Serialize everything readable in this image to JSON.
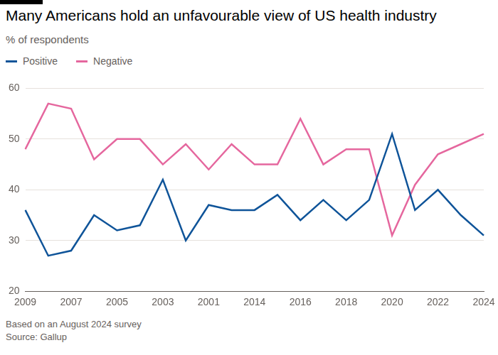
{
  "chart_data": {
    "type": "line",
    "title": "Many Americans hold an unfavourable view of US health industry",
    "subtitle": "% of respondents",
    "notes": [
      "Based on an August 2024 survey",
      "Source: Gallup"
    ],
    "categories": [
      "2009",
      null,
      "2007",
      null,
      "2005",
      null,
      "2003",
      null,
      "2001",
      null,
      "2014",
      null,
      "2016",
      null,
      "2018",
      null,
      "2020",
      null,
      "2022",
      null,
      "2024"
    ],
    "series": [
      {
        "name": "Positive",
        "color": "#0f5499",
        "values": [
          36,
          27,
          28,
          35,
          32,
          33,
          42,
          30,
          37,
          36,
          36,
          39,
          34,
          38,
          34,
          38,
          51,
          36,
          40,
          35,
          31
        ]
      },
      {
        "name": "Negative",
        "color": "#e5679e",
        "values": [
          48,
          57,
          56,
          46,
          50,
          50,
          45,
          49,
          44,
          49,
          45,
          45,
          54,
          45,
          48,
          48,
          31,
          41,
          47,
          49,
          51
        ]
      }
    ],
    "ylim": [
      20,
      60
    ],
    "yticks": [
      20,
      30,
      40,
      50,
      60
    ],
    "grid": true,
    "legend": "top-left"
  }
}
